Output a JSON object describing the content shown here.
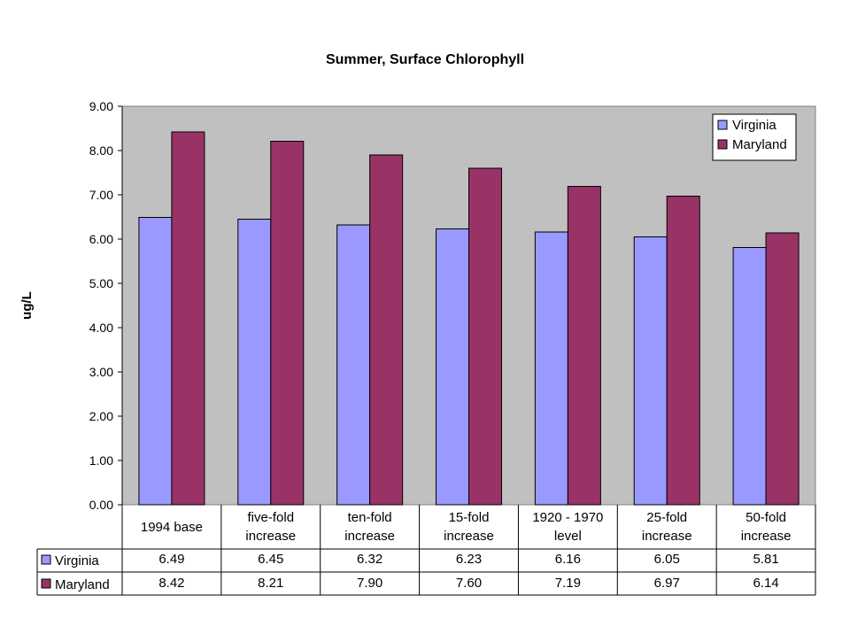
{
  "chart_data": {
    "type": "bar",
    "title": "Summer, Surface Chlorophyll",
    "xlabel": "",
    "ylabel": "ug/L",
    "ylim": [
      0,
      9
    ],
    "yticks": [
      "0.00",
      "1.00",
      "2.00",
      "3.00",
      "4.00",
      "5.00",
      "6.00",
      "7.00",
      "8.00",
      "9.00"
    ],
    "categories": [
      [
        "1994 base"
      ],
      [
        "five-fold",
        "increase"
      ],
      [
        "ten-fold",
        "increase"
      ],
      [
        "15-fold",
        "increase"
      ],
      [
        "1920 - 1970",
        "level"
      ],
      [
        "25-fold",
        "increase"
      ],
      [
        "50-fold",
        "increase"
      ]
    ],
    "series": [
      {
        "name": "Virginia",
        "color": "#9999ff",
        "values": [
          6.49,
          6.45,
          6.32,
          6.23,
          6.16,
          6.05,
          5.81
        ],
        "labels": [
          "6.49",
          "6.45",
          "6.32",
          "6.23",
          "6.16",
          "6.05",
          "5.81"
        ]
      },
      {
        "name": "Maryland",
        "color": "#993366",
        "values": [
          8.42,
          8.21,
          7.9,
          7.6,
          7.19,
          6.97,
          6.14
        ],
        "labels": [
          "8.42",
          "8.21",
          "7.90",
          "7.60",
          "7.19",
          "6.97",
          "6.14"
        ]
      }
    ],
    "grid": false,
    "legend": "top-right",
    "plot_background": "#c0c0c0",
    "data_table": true
  }
}
